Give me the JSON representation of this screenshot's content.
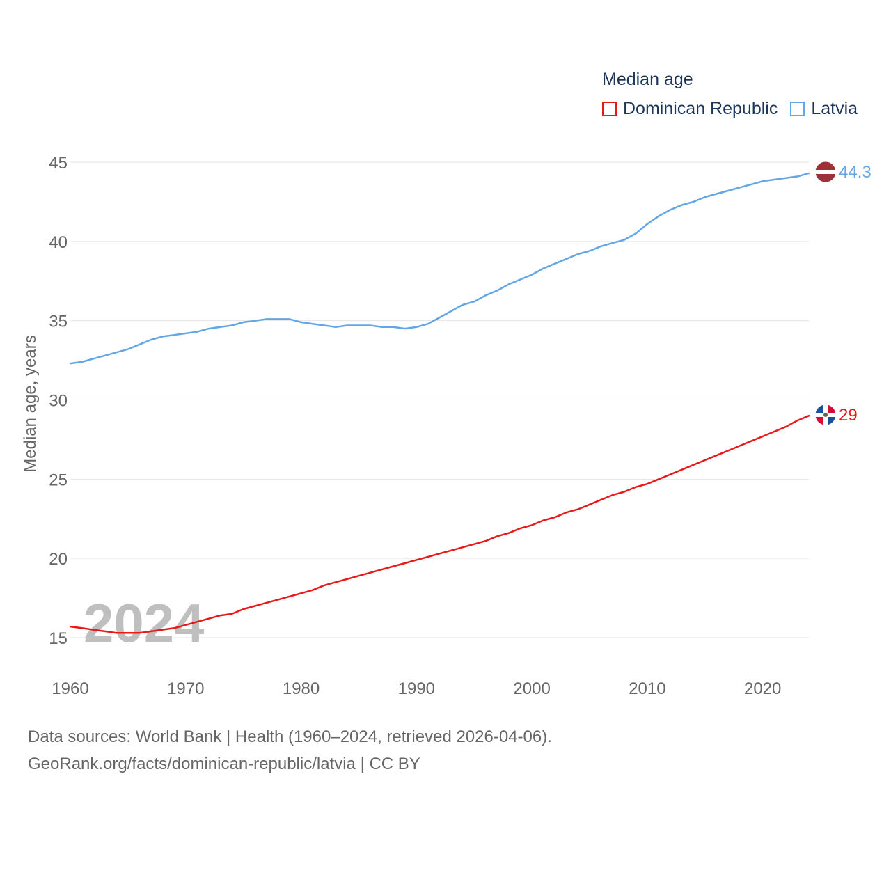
{
  "colors": {
    "dominican": "#e8191a",
    "latvia": "#63a6e6",
    "grid": "#e6e6e6",
    "axis_text": "#666666",
    "watermark": "#bfbfbf"
  },
  "legend": {
    "title": "Median age",
    "items": [
      {
        "label": "Dominican Republic",
        "color": "#e8191a"
      },
      {
        "label": "Latvia",
        "color": "#63a6e6"
      }
    ]
  },
  "watermark_year": "2024",
  "source_line1": "Data sources: World Bank | Health (1960–2024, retrieved 2026-04-06).",
  "source_line2": "GeoRank.org/facts/dominican-republic/latvia | CC BY",
  "chart_data": {
    "type": "line",
    "title": "Median age",
    "xlabel": "",
    "ylabel": "Median age, years",
    "xlim": [
      1960,
      2024
    ],
    "ylim": [
      13,
      46
    ],
    "xticks": [
      1960,
      1970,
      1980,
      1990,
      2000,
      2010,
      2020
    ],
    "yticks": [
      15,
      20,
      25,
      30,
      35,
      40,
      45
    ],
    "x": [
      1960,
      1961,
      1962,
      1963,
      1964,
      1965,
      1966,
      1967,
      1968,
      1969,
      1970,
      1971,
      1972,
      1973,
      1974,
      1975,
      1976,
      1977,
      1978,
      1979,
      1980,
      1981,
      1982,
      1983,
      1984,
      1985,
      1986,
      1987,
      1988,
      1989,
      1990,
      1991,
      1992,
      1993,
      1994,
      1995,
      1996,
      1997,
      1998,
      1999,
      2000,
      2001,
      2002,
      2003,
      2004,
      2005,
      2006,
      2007,
      2008,
      2009,
      2010,
      2011,
      2012,
      2013,
      2014,
      2015,
      2016,
      2017,
      2018,
      2019,
      2020,
      2021,
      2022,
      2023,
      2024
    ],
    "series": [
      {
        "name": "Latvia",
        "end_label": "44.3",
        "flag": "latvia-flag-icon",
        "values": [
          32.3,
          32.4,
          32.6,
          32.8,
          33.0,
          33.2,
          33.5,
          33.8,
          34.0,
          34.1,
          34.2,
          34.3,
          34.5,
          34.6,
          34.7,
          34.9,
          35.0,
          35.1,
          35.1,
          35.1,
          34.9,
          34.8,
          34.7,
          34.6,
          34.7,
          34.7,
          34.7,
          34.6,
          34.6,
          34.5,
          34.6,
          34.8,
          35.2,
          35.6,
          36.0,
          36.2,
          36.6,
          36.9,
          37.3,
          37.6,
          37.9,
          38.3,
          38.6,
          38.9,
          39.2,
          39.4,
          39.7,
          39.9,
          40.1,
          40.5,
          41.1,
          41.6,
          42.0,
          42.3,
          42.5,
          42.8,
          43.0,
          43.2,
          43.4,
          43.6,
          43.8,
          43.9,
          44.0,
          44.1,
          44.3
        ]
      },
      {
        "name": "Dominican Republic",
        "end_label": "29",
        "flag": "dominican-republic-flag-icon",
        "values": [
          15.7,
          15.6,
          15.5,
          15.4,
          15.3,
          15.3,
          15.3,
          15.4,
          15.5,
          15.6,
          15.8,
          16.0,
          16.2,
          16.4,
          16.5,
          16.8,
          17.0,
          17.2,
          17.4,
          17.6,
          17.8,
          18.0,
          18.3,
          18.5,
          18.7,
          18.9,
          19.1,
          19.3,
          19.5,
          19.7,
          19.9,
          20.1,
          20.3,
          20.5,
          20.7,
          20.9,
          21.1,
          21.4,
          21.6,
          21.9,
          22.1,
          22.4,
          22.6,
          22.9,
          23.1,
          23.4,
          23.7,
          24.0,
          24.2,
          24.5,
          24.7,
          25.0,
          25.3,
          25.6,
          25.9,
          26.2,
          26.5,
          26.8,
          27.1,
          27.4,
          27.7,
          28.0,
          28.3,
          28.7,
          29.0
        ]
      }
    ]
  }
}
